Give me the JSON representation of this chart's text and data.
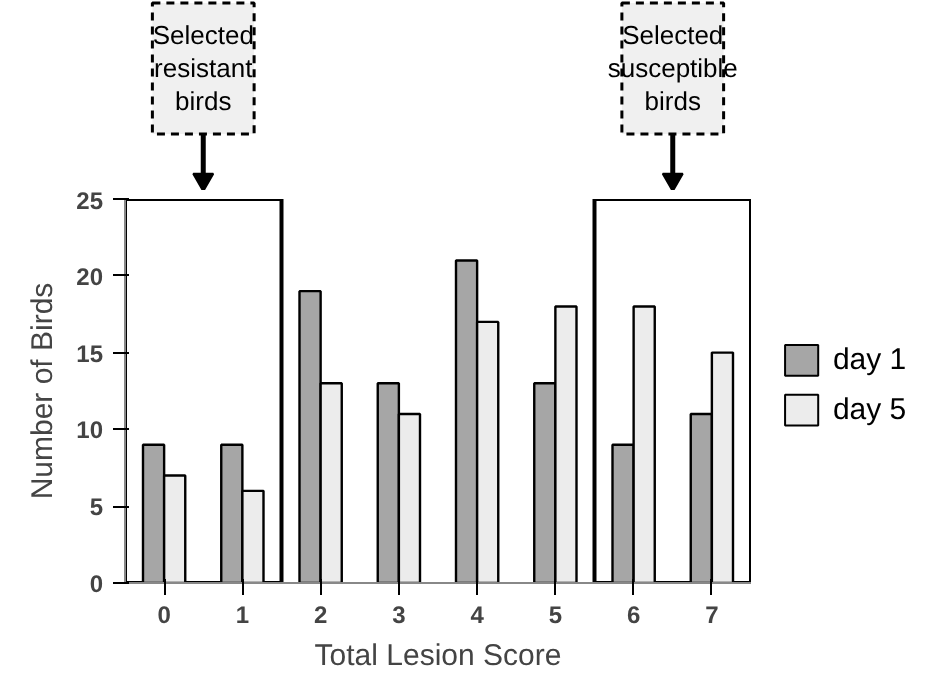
{
  "chart_data": {
    "type": "bar",
    "xlabel": "Total Lesion Score",
    "ylabel": "Number of Birds",
    "categories": [
      "0",
      "1",
      "2",
      "3",
      "4",
      "5",
      "6",
      "7"
    ],
    "series": [
      {
        "name": "day 1",
        "color": "#a6a6a6",
        "values": [
          9,
          9,
          19,
          13,
          21,
          13,
          9,
          11
        ]
      },
      {
        "name": "day 5",
        "color": "#ececec",
        "values": [
          7,
          6,
          13,
          11,
          17,
          18,
          18,
          15
        ]
      }
    ],
    "ylim": [
      0,
      25
    ],
    "yticks": [
      0,
      5,
      10,
      15,
      20,
      25
    ],
    "grid": false,
    "legend": "right",
    "bands": [
      {
        "axis": "x",
        "from": "0",
        "to": "1"
      },
      {
        "axis": "x",
        "from": "6",
        "to": "7"
      }
    ],
    "annotations": [
      "Selected resistant birds",
      "Selected susceptible birds"
    ]
  }
}
